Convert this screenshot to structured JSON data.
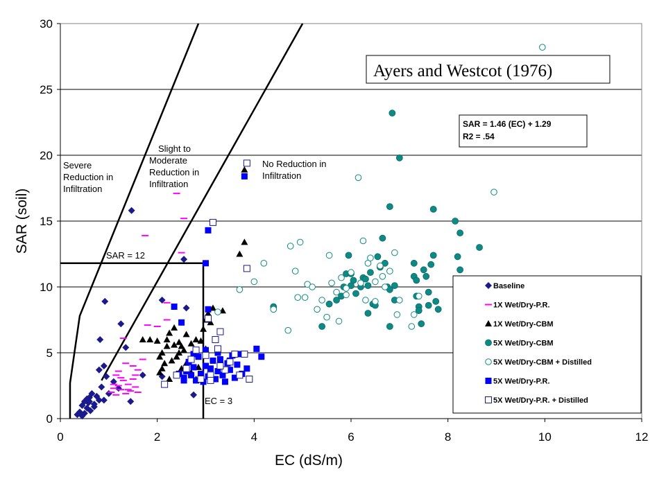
{
  "chart_data": {
    "type": "scatter",
    "title_box": "Ayers and Westcot (1976)",
    "xlabel": "EC (dS/m)",
    "ylabel": "SAR (soil)",
    "xlim": [
      0,
      12
    ],
    "ylim": [
      0,
      30
    ],
    "xticks": [
      "0",
      "2",
      "4",
      "6",
      "8",
      "10",
      "12"
    ],
    "yticks": [
      "0",
      "5",
      "10",
      "15",
      "20",
      "25",
      "30"
    ],
    "grid": "horizontal",
    "legend_position": "right",
    "equation_lines": [
      "SAR = 1.46 (EC) + 1.29",
      "R2 = .54"
    ],
    "region_labels": {
      "severe": [
        "Severe",
        "Reduction in",
        "Infiltration"
      ],
      "slight": [
        "Slight to",
        "Moderate",
        "Reduction in",
        "Infiltration"
      ],
      "none": [
        "No Reduction in",
        "Infiltration"
      ]
    },
    "reference_labels": {
      "sar": "SAR = 12",
      "ec": "EC = 3"
    },
    "boundary_lines": [
      {
        "x": [
          0.2,
          0.2,
          0.4,
          2.85
        ],
        "y": [
          0,
          2.7,
          7.8,
          30
        ]
      },
      {
        "x": [
          0.85,
          5.0
        ],
        "y": [
          2.9,
          30
        ]
      },
      {
        "x": [
          0,
          2.95,
          2.95
        ],
        "y": [
          11.8,
          11.8,
          0
        ]
      }
    ],
    "series": [
      {
        "name": "Baseline",
        "marker": "diamond",
        "color": "#1a1a8c",
        "points": [
          [
            0.35,
            0.3
          ],
          [
            0.4,
            0.5
          ],
          [
            0.45,
            1.0
          ],
          [
            0.5,
            1.3
          ],
          [
            0.55,
            0.8
          ],
          [
            0.6,
            1.6
          ],
          [
            0.55,
            1.5
          ],
          [
            0.65,
            1.9
          ],
          [
            0.7,
            1.1
          ],
          [
            0.62,
            0.6
          ],
          [
            0.75,
            1.7
          ],
          [
            0.8,
            1.4
          ],
          [
            0.45,
            0.2
          ],
          [
            0.5,
            0.4
          ],
          [
            0.58,
            1.2
          ],
          [
            0.85,
            2.4
          ],
          [
            0.9,
            1.4
          ],
          [
            0.95,
            3.2
          ],
          [
            0.8,
            3.7
          ],
          [
            1.0,
            1.9
          ],
          [
            1.1,
            2.8
          ],
          [
            1.2,
            2.3
          ],
          [
            1.25,
            7.2
          ],
          [
            0.9,
            4.0
          ],
          [
            0.82,
            6.0
          ],
          [
            0.92,
            8.9
          ],
          [
            1.35,
            5.4
          ],
          [
            1.45,
            1.3
          ],
          [
            1.7,
            3.3
          ],
          [
            1.47,
            15.8
          ],
          [
            2.1,
            9.0
          ],
          [
            2.1,
            3.2
          ],
          [
            2.55,
            12.1
          ],
          [
            2.6,
            8.4
          ],
          [
            2.75,
            1.8
          ],
          [
            0.7,
            0.9
          ],
          [
            0.6,
            1.3
          ]
        ]
      },
      {
        "name": "1X Wet/Dry-P.R.",
        "marker": "dash",
        "color": "#ff00ff",
        "points": [
          [
            1.05,
            2.0
          ],
          [
            1.1,
            2.3
          ],
          [
            1.15,
            1.8
          ],
          [
            1.2,
            2.5
          ],
          [
            1.25,
            2.2
          ],
          [
            1.3,
            2.9
          ],
          [
            1.35,
            1.9
          ],
          [
            1.4,
            2.6
          ],
          [
            1.45,
            2.1
          ],
          [
            1.5,
            3.0
          ],
          [
            1.55,
            2.4
          ],
          [
            1.6,
            2.0
          ],
          [
            1.15,
            3.3
          ],
          [
            1.25,
            3.1
          ],
          [
            1.35,
            4.2
          ],
          [
            1.5,
            4.0
          ],
          [
            1.2,
            3.6
          ],
          [
            1.6,
            3.7
          ],
          [
            1.7,
            4.5
          ],
          [
            1.3,
            6.1
          ],
          [
            1.75,
            13.9
          ],
          [
            2.4,
            17.1
          ],
          [
            2.55,
            15.2
          ],
          [
            2.2,
            8.8
          ],
          [
            1.8,
            7.1
          ],
          [
            2.5,
            12.6
          ],
          [
            2.0,
            7.0
          ],
          [
            2.2,
            7.5
          ],
          [
            1.1,
            2.6
          ],
          [
            1.4,
            2.2
          ],
          [
            1.55,
            3.3
          ]
        ]
      },
      {
        "name": "1X Wet/Dry-CBM",
        "marker": "triangle",
        "color": "#000000",
        "points": [
          [
            1.7,
            6.0
          ],
          [
            1.85,
            6.0
          ],
          [
            2.0,
            5.9
          ],
          [
            2.05,
            4.7
          ],
          [
            2.1,
            5.0
          ],
          [
            2.15,
            4.2
          ],
          [
            2.2,
            5.5
          ],
          [
            2.25,
            6.5
          ],
          [
            2.3,
            4.4
          ],
          [
            2.35,
            6.9
          ],
          [
            2.4,
            4.7
          ],
          [
            2.45,
            5.0
          ],
          [
            2.5,
            5.5
          ],
          [
            2.55,
            5.2
          ],
          [
            2.6,
            4.2
          ],
          [
            2.65,
            4.3
          ],
          [
            2.7,
            3.5
          ],
          [
            2.8,
            3.0
          ],
          [
            2.85,
            3.9
          ],
          [
            2.9,
            5.9
          ],
          [
            2.95,
            6.8
          ],
          [
            3.0,
            7.5
          ],
          [
            3.05,
            8.0
          ],
          [
            3.1,
            7.3
          ],
          [
            3.0,
            5.3
          ],
          [
            2.1,
            3.8
          ],
          [
            2.25,
            3.0
          ],
          [
            2.5,
            3.8
          ],
          [
            3.15,
            8.4
          ],
          [
            3.7,
            12.5
          ],
          [
            3.8,
            13.4
          ],
          [
            2.6,
            6.4
          ],
          [
            2.7,
            5.7
          ],
          [
            3.35,
            8.2
          ],
          [
            2.45,
            5.8
          ],
          [
            2.2,
            6.0
          ],
          [
            2.8,
            6.0
          ],
          [
            3.8,
            18.9
          ],
          [
            2.05,
            3.5
          ],
          [
            2.35,
            5.6
          ]
        ]
      },
      {
        "name": "5X Wet/Dry-CBM",
        "marker": "circle-filled",
        "color": "#0e8a86",
        "points": [
          [
            4.4,
            8.5
          ],
          [
            5.4,
            7.0
          ],
          [
            5.55,
            8.7
          ],
          [
            5.7,
            9.0
          ],
          [
            5.8,
            9.3
          ],
          [
            5.85,
            10.0
          ],
          [
            5.9,
            11.0
          ],
          [
            5.95,
            12.4
          ],
          [
            6.0,
            10.1
          ],
          [
            6.05,
            10.5
          ],
          [
            6.0,
            11.0
          ],
          [
            6.1,
            9.5
          ],
          [
            6.2,
            10.0
          ],
          [
            6.25,
            10.7
          ],
          [
            6.3,
            10.6
          ],
          [
            6.35,
            8.0
          ],
          [
            6.4,
            11.1
          ],
          [
            6.45,
            8.7
          ],
          [
            6.5,
            8.6
          ],
          [
            6.55,
            12.3
          ],
          [
            6.6,
            11.5
          ],
          [
            6.65,
            13.7
          ],
          [
            6.7,
            11.8
          ],
          [
            6.75,
            10.0
          ],
          [
            6.8,
            9.8
          ],
          [
            6.85,
            23.2
          ],
          [
            6.9,
            10.1
          ],
          [
            7.0,
            19.8
          ],
          [
            6.8,
            16.1
          ],
          [
            7.3,
            11.8
          ],
          [
            7.3,
            10.8
          ],
          [
            7.35,
            10.5
          ],
          [
            7.4,
            8.5
          ],
          [
            7.4,
            8.2
          ],
          [
            7.45,
            7.2
          ],
          [
            7.5,
            11.3
          ],
          [
            7.55,
            10.8
          ],
          [
            7.6,
            8.6
          ],
          [
            7.6,
            9.6
          ],
          [
            7.7,
            12.4
          ],
          [
            7.65,
            11.7
          ],
          [
            7.75,
            8.9
          ],
          [
            7.8,
            8.3
          ],
          [
            7.7,
            15.9
          ],
          [
            8.15,
            15.0
          ],
          [
            8.25,
            14.1
          ],
          [
            8.2,
            12.3
          ],
          [
            8.25,
            11.3
          ],
          [
            8.65,
            13.0
          ],
          [
            6.8,
            7.0
          ],
          [
            6.9,
            9.0
          ],
          [
            7.35,
            9.3
          ],
          [
            6.35,
            10.1
          ]
        ]
      },
      {
        "name": "5X Wet/Dry-CBM + Distilled",
        "marker": "circle-open",
        "color": "#0e8a86",
        "points": [
          [
            3.25,
            8.1
          ],
          [
            3.7,
            9.8
          ],
          [
            4.0,
            10.4
          ],
          [
            4.2,
            11.8
          ],
          [
            4.4,
            8.3
          ],
          [
            4.7,
            6.7
          ],
          [
            4.75,
            13.1
          ],
          [
            4.85,
            11.2
          ],
          [
            4.95,
            13.4
          ],
          [
            4.9,
            9.2
          ],
          [
            5.05,
            9.2
          ],
          [
            5.1,
            10.2
          ],
          [
            5.2,
            10.0
          ],
          [
            5.3,
            8.3
          ],
          [
            5.4,
            9.0
          ],
          [
            5.5,
            7.7
          ],
          [
            5.55,
            12.4
          ],
          [
            5.6,
            10.3
          ],
          [
            5.7,
            9.6
          ],
          [
            5.75,
            7.4
          ],
          [
            5.8,
            10.7
          ],
          [
            5.9,
            9.4
          ],
          [
            6.0,
            11.1
          ],
          [
            6.15,
            18.3
          ],
          [
            6.2,
            10.3
          ],
          [
            6.25,
            13.5
          ],
          [
            6.3,
            9.0
          ],
          [
            6.35,
            11.8
          ],
          [
            6.5,
            10.4
          ],
          [
            6.5,
            8.9
          ],
          [
            6.6,
            11.6
          ],
          [
            6.65,
            10.8
          ],
          [
            6.7,
            10.0
          ],
          [
            6.8,
            11.2
          ],
          [
            6.9,
            12.6
          ],
          [
            6.95,
            7.9
          ],
          [
            7.0,
            9.0
          ],
          [
            7.25,
            7.0
          ],
          [
            7.3,
            7.9
          ],
          [
            7.4,
            9.3
          ],
          [
            8.95,
            17.2
          ],
          [
            9.95,
            28.2
          ],
          [
            5.9,
            9.9
          ],
          [
            6.4,
            12.2
          ]
        ]
      },
      {
        "name": "5X Wet/Dry-P.R.",
        "marker": "square-filled",
        "color": "#0000ff",
        "points": [
          [
            2.35,
            8.5
          ],
          [
            2.5,
            7.3
          ],
          [
            2.55,
            3.1
          ],
          [
            2.6,
            3.6
          ],
          [
            2.65,
            4.3
          ],
          [
            2.7,
            3.3
          ],
          [
            2.75,
            3.9
          ],
          [
            2.8,
            2.9
          ],
          [
            2.85,
            4.7
          ],
          [
            2.9,
            3.4
          ],
          [
            2.95,
            2.8
          ],
          [
            3.0,
            5.2
          ],
          [
            3.0,
            4.0
          ],
          [
            3.05,
            3.2
          ],
          [
            3.1,
            3.8
          ],
          [
            3.15,
            4.4
          ],
          [
            3.2,
            3.0
          ],
          [
            3.25,
            5.0
          ],
          [
            3.3,
            4.5
          ],
          [
            3.35,
            3.3
          ],
          [
            3.4,
            2.8
          ],
          [
            3.45,
            4.2
          ],
          [
            3.5,
            3.7
          ],
          [
            3.55,
            4.8
          ],
          [
            3.6,
            3.1
          ],
          [
            3.65,
            4.1
          ],
          [
            3.7,
            4.9
          ],
          [
            3.75,
            3.4
          ],
          [
            3.85,
            3.8
          ],
          [
            4.05,
            5.3
          ],
          [
            4.15,
            4.7
          ],
          [
            3.0,
            11.8
          ],
          [
            3.05,
            14.3
          ],
          [
            3.05,
            8.3
          ],
          [
            3.8,
            18.4
          ],
          [
            2.55,
            2.9
          ],
          [
            2.45,
            3.4
          ],
          [
            3.25,
            3.6
          ],
          [
            3.5,
            4.4
          ],
          [
            2.75,
            4.9
          ]
        ]
      },
      {
        "name": "5X Wet/Dry-P.R. + Distilled",
        "marker": "square-open",
        "color": "#1a1a8c",
        "points": [
          [
            2.15,
            2.6
          ],
          [
            2.4,
            3.3
          ],
          [
            2.6,
            3.8
          ],
          [
            2.7,
            4.5
          ],
          [
            2.8,
            5.2
          ],
          [
            2.9,
            3.0
          ],
          [
            3.0,
            4.8
          ],
          [
            3.1,
            3.3
          ],
          [
            3.2,
            6.0
          ],
          [
            3.25,
            5.3
          ],
          [
            3.3,
            6.6
          ],
          [
            3.4,
            3.7
          ],
          [
            3.5,
            4.3
          ],
          [
            3.6,
            4.9
          ],
          [
            3.7,
            3.3
          ],
          [
            3.8,
            4.9
          ],
          [
            3.9,
            3.0
          ],
          [
            3.15,
            14.9
          ],
          [
            3.85,
            11.4
          ],
          [
            3.85,
            19.4
          ],
          [
            3.1,
            2.9
          ],
          [
            3.3,
            4.0
          ],
          [
            3.05,
            7.6
          ]
        ]
      }
    ]
  }
}
